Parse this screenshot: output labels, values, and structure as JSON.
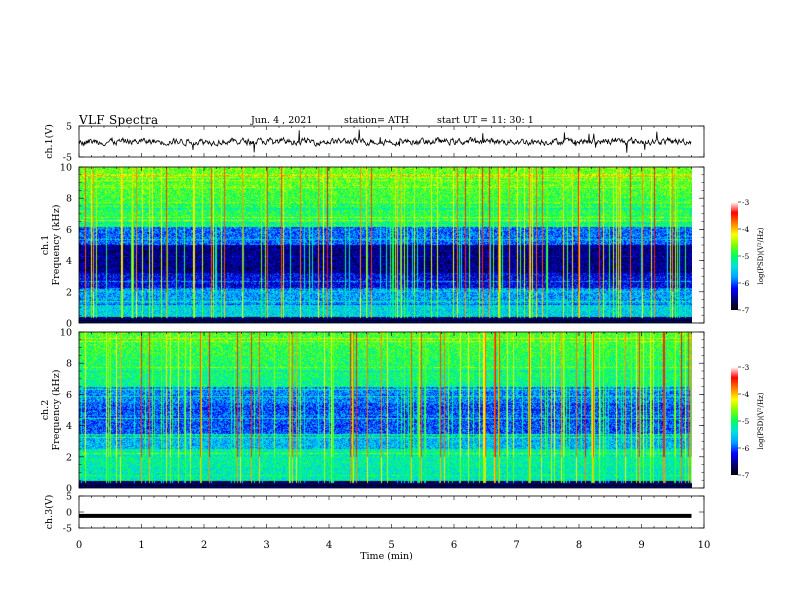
{
  "header": {
    "title": "VLF  Spectra",
    "date": "Jun. 4 , 2021",
    "station": "station= ATH",
    "start_ut": "start  UT  =    11: 30: 1"
  },
  "chart_data": [
    {
      "type": "line",
      "panel": "ch1-waveform",
      "ylabel": "ch.1(V)",
      "ylim": [
        -5,
        5
      ],
      "y_ticks": [
        "5",
        "-5"
      ],
      "description_of_trace": "noisy broadband waveform centered near 0 V"
    },
    {
      "type": "heatmap",
      "panel": "ch1-spectrogram",
      "ylabel": "ch.1\nFrequency  (kHz)",
      "ylabel_line1": "ch.1",
      "ylabel_line2": "Frequency  (kHz)",
      "ylim": [
        0,
        10
      ],
      "y_ticks": [
        "0",
        "2",
        "4",
        "6",
        "8",
        "10"
      ],
      "colorbar": {
        "label": "log(PSD)(V²/Hz)",
        "range": [
          -7,
          -3
        ],
        "ticks": [
          "-3",
          "-4",
          "-5",
          "-6",
          "-7"
        ]
      }
    },
    {
      "type": "heatmap",
      "panel": "ch2-spectrogram",
      "ylabel_line1": "ch.2",
      "ylabel_line2": "Frequency  (kHz)",
      "ylim": [
        0,
        10
      ],
      "y_ticks": [
        "0",
        "2",
        "4",
        "6",
        "8",
        "10"
      ],
      "colorbar": {
        "label": "log(PSD)(V²/Hz)",
        "range": [
          -7,
          -3
        ],
        "ticks": [
          "-3",
          "-4",
          "-5",
          "-6",
          "-7"
        ]
      }
    },
    {
      "type": "line",
      "panel": "ch3-waveform",
      "ylabel": "ch.3(V)",
      "ylim": [
        -5,
        5
      ],
      "y_ticks": [
        "5",
        "0",
        "-5"
      ],
      "level": -1.2
    }
  ],
  "x_axis": {
    "label": "Time  (min)",
    "xlim": [
      0,
      10
    ],
    "ticks": [
      "0",
      "1",
      "2",
      "3",
      "4",
      "5",
      "6",
      "7",
      "8",
      "9",
      "10"
    ]
  },
  "colors": {
    "colormap": [
      "#000000",
      "#000080",
      "#0000ff",
      "#00a0ff",
      "#00e0e0",
      "#00ff60",
      "#80ff00",
      "#ffff00",
      "#ff8000",
      "#ff0000",
      "#ffffff"
    ],
    "trace": "#000000"
  }
}
